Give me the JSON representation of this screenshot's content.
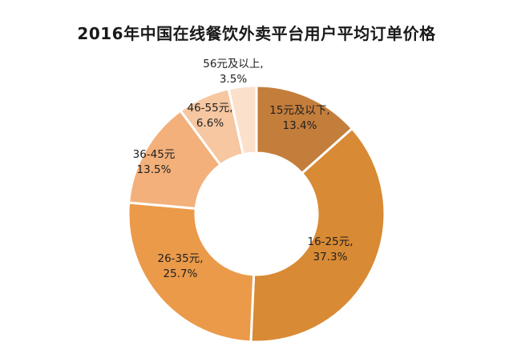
{
  "chart_data": {
    "type": "pie",
    "title": "2016年中国在线餐饮外卖平台用户平均订单价格",
    "categories": [
      "15元及以下",
      "16-25元",
      "26-35元",
      "36-45元",
      "46-55元",
      "56元及以上"
    ],
    "values": [
      13.4,
      37.3,
      25.7,
      13.5,
      6.6,
      3.5
    ],
    "value_labels": [
      "13.4%",
      "37.3%",
      "25.7%",
      "13.5%",
      "6.6%",
      "3.5%"
    ],
    "slice_text": [
      "15元及以下,",
      "16-25元,",
      "26-35元,",
      "36-45元",
      "46-55元,",
      "56元及以上,"
    ],
    "colors": [
      "#c47e3c",
      "#d98a34",
      "#eb9a4a",
      "#f3b07a",
      "#f6c7a1",
      "#fbe0cc"
    ],
    "donut": true,
    "legend": "none",
    "grid": false
  }
}
